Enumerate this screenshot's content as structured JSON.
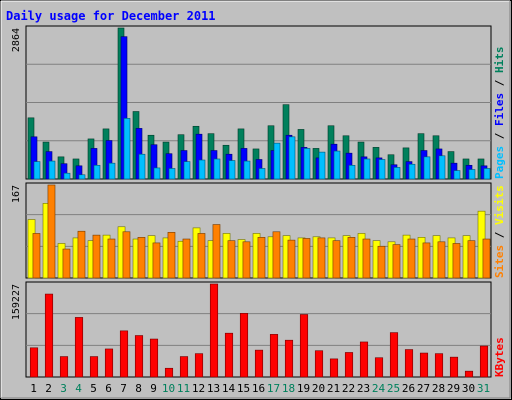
{
  "chart_data": {
    "type": "bar",
    "title": "Daily usage for December 2011",
    "days": [
      "1",
      "2",
      "3",
      "4",
      "5",
      "6",
      "7",
      "8",
      "9",
      "10",
      "11",
      "12",
      "13",
      "14",
      "15",
      "16",
      "17",
      "18",
      "19",
      "20",
      "21",
      "22",
      "23",
      "24",
      "25",
      "26",
      "27",
      "28",
      "29",
      "30",
      "31"
    ],
    "weekend_days": [
      "3",
      "4",
      "10",
      "11",
      "17",
      "18",
      "24",
      "25",
      "31"
    ],
    "panels": [
      {
        "id": "hits_files_pages",
        "max_label": "2864",
        "max": 2864,
        "series": [
          {
            "name": "Hits",
            "color": "#00805c",
            "values": [
              1160,
              700,
              420,
              380,
              760,
              950,
              2864,
              1280,
              830,
              700,
              840,
              1000,
              860,
              640,
              950,
              570,
              1010,
              1410,
              940,
              580,
              1010,
              820,
              700,
              600,
              460,
              590,
              860,
              820,
              520,
              380,
              380
            ]
          },
          {
            "name": "Files",
            "color": "#0000ff",
            "values": [
              800,
              520,
              290,
              250,
              580,
              730,
              2700,
              960,
              650,
              480,
              540,
              850,
              540,
              470,
              580,
              370,
              540,
              830,
              600,
              400,
              660,
              490,
              420,
              400,
              270,
              330,
              540,
              570,
              300,
              260,
              250
            ]
          },
          {
            "name": "Pages",
            "color": "#00bfff",
            "values": [
              330,
              340,
              110,
              80,
              260,
              300,
              1150,
              470,
              210,
              200,
              330,
              360,
              380,
              350,
              340,
              200,
              680,
              800,
              580,
              510,
              530,
              260,
              380,
              370,
              220,
              280,
              420,
              440,
              160,
              180,
              200
            ]
          }
        ],
        "legend": [
          "Pages",
          "Files",
          "Hits"
        ]
      },
      {
        "id": "visits_sites",
        "max_label": "167",
        "max": 167,
        "series": [
          {
            "name": "Visits",
            "color": "#ffff00",
            "values": [
              105,
              134,
              62,
              72,
              67,
              77,
              92,
              70,
              76,
              72,
              66,
              90,
              67,
              80,
              69,
              80,
              74,
              76,
              72,
              74,
              72,
              76,
              80,
              67,
              65,
              77,
              73,
              76,
              72,
              76,
              120
            ]
          },
          {
            "name": "Sites",
            "color": "#ff8000",
            "values": [
              80,
              167,
              52,
              84,
              77,
              70,
              83,
              73,
              63,
              82,
              70,
              80,
              96,
              67,
              65,
              73,
              83,
              68,
              71,
              72,
              67,
              73,
              70,
              57,
              60,
              70,
              63,
              65,
              62,
              67,
              70
            ]
          }
        ],
        "legend": [
          "Sites",
          "Visits"
        ]
      },
      {
        "id": "kbytes",
        "max_label": "159227",
        "max": 159227,
        "series": [
          {
            "name": "KBytes",
            "color": "#ff0000",
            "values": [
              50000,
              142000,
              35000,
              102000,
              35000,
              48000,
              79000,
              71000,
              65000,
              15000,
              35000,
              40000,
              159227,
              75000,
              109000,
              46000,
              73000,
              63000,
              107000,
              45000,
              31000,
              42000,
              60000,
              33000,
              76000,
              47000,
              41000,
              40000,
              34000,
              10000,
              53000
            ]
          }
        ],
        "legend": [
          "KBytes"
        ]
      }
    ]
  }
}
